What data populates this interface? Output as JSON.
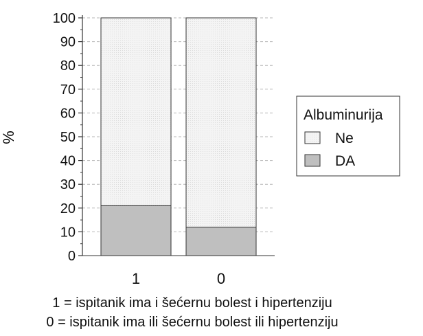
{
  "chart_data": {
    "type": "bar",
    "stacked": true,
    "percent": true,
    "categories": [
      "1",
      "0"
    ],
    "series": [
      {
        "name": "DA",
        "values": [
          21,
          12
        ],
        "color": "#bfbfbf"
      },
      {
        "name": "Ne",
        "values": [
          79,
          88
        ],
        "color": "#f3f3f3"
      }
    ],
    "ylabel": "%",
    "xlabel": "",
    "ylim": [
      0,
      100
    ],
    "yticks": [
      0,
      10,
      20,
      30,
      40,
      50,
      60,
      70,
      80,
      90,
      100
    ],
    "grid": "horizontal-dashed",
    "legend": {
      "title": "Albuminurija",
      "position": "right",
      "entries": [
        "Ne",
        "DA"
      ]
    }
  },
  "captions": [
    "1 = ispitanik ima i šećernu bolest i hipertenziju",
    "0 = ispitanik ima ili šećernu bolest ili hipertenziju"
  ]
}
